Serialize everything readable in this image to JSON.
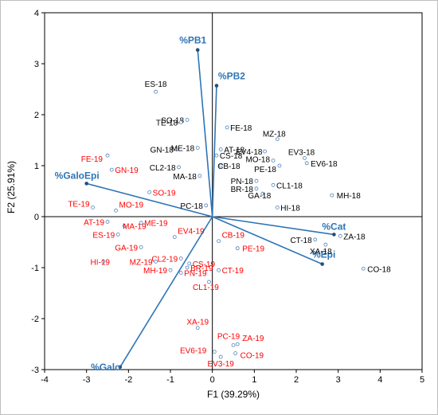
{
  "chart_data": {
    "type": "scatter",
    "title": "",
    "xlabel": "F1 (39.29%)",
    "ylabel": "F2 (25.91%)",
    "xlim": [
      -4,
      5
    ],
    "ylim": [
      -3,
      4
    ],
    "xticks": [
      "-4",
      "-3",
      "-2",
      "-1",
      "0",
      "1",
      "2",
      "3",
      "4",
      "5"
    ],
    "yticks": [
      "-3",
      "-2",
      "-1",
      "0",
      "1",
      "2",
      "3",
      "4"
    ],
    "grid": false,
    "colors": {
      "vectors": "#2e75b6",
      "year2018": "#000000",
      "year2019": "#ff0000",
      "marker": "#4f81bd"
    },
    "vectors": [
      {
        "name": "%PB1",
        "x": -0.35,
        "y": 3.27
      },
      {
        "name": "%PB2",
        "x": 0.1,
        "y": 2.57
      },
      {
        "name": "%GaloEpi",
        "x": -3.0,
        "y": 0.65
      },
      {
        "name": "%Cat",
        "x": 2.9,
        "y": -0.35
      },
      {
        "name": "%Epi",
        "x": 2.62,
        "y": -0.93
      },
      {
        "name": "%Galo",
        "x": -2.2,
        "y": -2.95
      }
    ],
    "series": [
      {
        "name": "2018",
        "points": [
          {
            "label": "ES-18",
            "x": -1.35,
            "y": 2.45
          },
          {
            "label": "SO-18",
            "x": -0.6,
            "y": 1.9
          },
          {
            "label": "TE-18",
            "x": -0.75,
            "y": 1.85
          },
          {
            "label": "FE-18",
            "x": 0.35,
            "y": 1.75
          },
          {
            "label": "MZ-18",
            "x": 1.55,
            "y": 1.52
          },
          {
            "label": "GN-18",
            "x": -0.85,
            "y": 1.32
          },
          {
            "label": "ME-18",
            "x": -0.35,
            "y": 1.35
          },
          {
            "label": "AT-18",
            "x": 0.2,
            "y": 1.32
          },
          {
            "label": "EV4-18",
            "x": 1.25,
            "y": 1.28
          },
          {
            "label": "EV3-18",
            "x": 2.2,
            "y": 1.15
          },
          {
            "label": "CS-18",
            "x": 0.1,
            "y": 1.2
          },
          {
            "label": "MO-18",
            "x": 1.45,
            "y": 1.1
          },
          {
            "label": "EV6-18",
            "x": 2.25,
            "y": 1.05
          },
          {
            "label": "CB-18",
            "x": 0.2,
            "y": 1.0
          },
          {
            "label": "PE-18",
            "x": 1.6,
            "y": 1.0
          },
          {
            "label": "CL2-18",
            "x": -0.8,
            "y": 0.97
          },
          {
            "label": "MA-18",
            "x": -0.3,
            "y": 0.8
          },
          {
            "label": "PN-18",
            "x": 1.05,
            "y": 0.7
          },
          {
            "label": "CL1-18",
            "x": 1.45,
            "y": 0.62
          },
          {
            "label": "BR-18",
            "x": 1.05,
            "y": 0.55
          },
          {
            "label": "GA-18",
            "x": 1.2,
            "y": 0.45
          },
          {
            "label": "MH-18",
            "x": 2.85,
            "y": 0.42
          },
          {
            "label": "PC-18",
            "x": -0.15,
            "y": 0.22
          },
          {
            "label": "HI-18",
            "x": 1.55,
            "y": 0.18
          },
          {
            "label": "ZA-18",
            "x": 3.05,
            "y": -0.38
          },
          {
            "label": "CT-18",
            "x": 2.45,
            "y": -0.45
          },
          {
            "label": "XA-18",
            "x": 2.7,
            "y": -0.55
          },
          {
            "label": "CO-18",
            "x": 3.6,
            "y": -1.02
          }
        ]
      },
      {
        "name": "2019",
        "points": [
          {
            "label": "FE-19",
            "x": -2.5,
            "y": 1.2
          },
          {
            "label": "GN-19",
            "x": -2.4,
            "y": 0.92
          },
          {
            "label": "SO-19",
            "x": -1.5,
            "y": 0.48
          },
          {
            "label": "TE-19",
            "x": -2.85,
            "y": 0.18
          },
          {
            "label": "MO-19",
            "x": -2.3,
            "y": 0.12
          },
          {
            "label": "AT-19",
            "x": -2.5,
            "y": -0.1
          },
          {
            "label": "MA-19",
            "x": -2.1,
            "y": -0.18
          },
          {
            "label": "ME-19",
            "x": -1.7,
            "y": -0.12
          },
          {
            "label": "ES-19",
            "x": -2.25,
            "y": -0.35
          },
          {
            "label": "EV4-19",
            "x": -0.9,
            "y": -0.4
          },
          {
            "label": "GA-19",
            "x": -1.7,
            "y": -0.6
          },
          {
            "label": "CB-19",
            "x": 0.15,
            "y": -0.48
          },
          {
            "label": "PE-19",
            "x": 0.6,
            "y": -0.62
          },
          {
            "label": "HI-19",
            "x": -2.6,
            "y": -0.88
          },
          {
            "label": "CL2-19",
            "x": -0.75,
            "y": -0.82
          },
          {
            "label": "CS-19",
            "x": -0.55,
            "y": -0.92
          },
          {
            "label": "MZ-19",
            "x": -1.35,
            "y": -0.88
          },
          {
            "label": "BR-19",
            "x": -0.6,
            "y": -1.0
          },
          {
            "label": "MH-19",
            "x": -1.0,
            "y": -1.05
          },
          {
            "label": "PN-19",
            "x": -0.75,
            "y": -1.1
          },
          {
            "label": "CT-19",
            "x": 0.15,
            "y": -1.05
          },
          {
            "label": "CL1-19",
            "x": -0.08,
            "y": -1.28
          },
          {
            "label": "XA-19",
            "x": -0.35,
            "y": -2.18
          },
          {
            "label": "PC-19",
            "x": 0.5,
            "y": -2.52
          },
          {
            "label": "ZA-19",
            "x": 0.6,
            "y": -2.5
          },
          {
            "label": "EV6-19",
            "x": 0.05,
            "y": -2.65
          },
          {
            "label": "CO-19",
            "x": 0.55,
            "y": -2.68
          },
          {
            "label": "EV3-19",
            "x": 0.2,
            "y": -2.75
          }
        ]
      }
    ]
  }
}
